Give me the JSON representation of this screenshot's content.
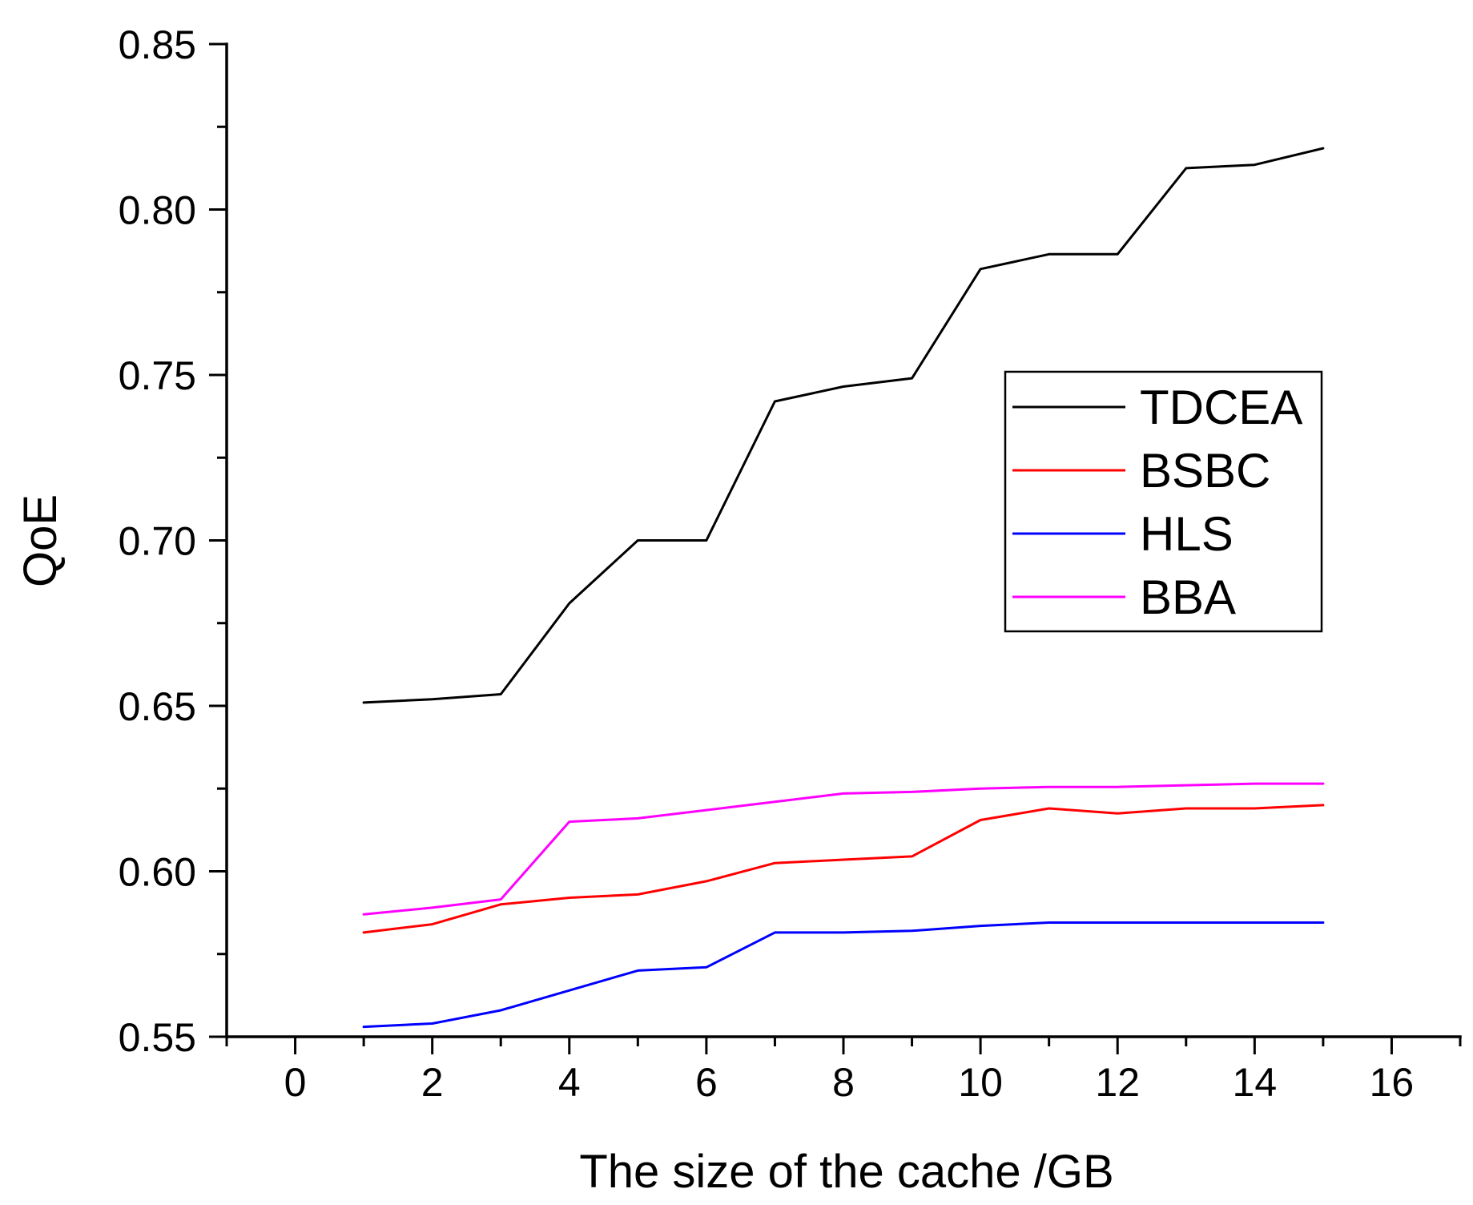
{
  "chart_data": {
    "type": "line",
    "title": "",
    "xlabel": "The size of the cache /GB",
    "ylabel": "QoE",
    "xlim": [
      -1,
      17
    ],
    "ylim": [
      0.55,
      0.85
    ],
    "x_major_ticks": [
      0,
      2,
      4,
      6,
      8,
      10,
      12,
      14,
      16
    ],
    "x_tick_labels": [
      "0",
      "2",
      "4",
      "6",
      "8",
      "10",
      "12",
      "14",
      "16"
    ],
    "x_minor_ticks": [
      -1,
      1,
      3,
      5,
      7,
      9,
      11,
      13,
      15,
      17
    ],
    "y_major_ticks": [
      0.55,
      0.6,
      0.65,
      0.7,
      0.75,
      0.8,
      0.85
    ],
    "y_tick_labels": [
      "0.55",
      "0.60",
      "0.65",
      "0.70",
      "0.75",
      "0.80",
      "0.85"
    ],
    "y_minor_ticks": [
      0.575,
      0.625,
      0.675,
      0.725,
      0.775,
      0.825
    ],
    "grid": false,
    "legend_position": "center-right",
    "x": [
      1,
      2,
      3,
      4,
      5,
      6,
      7,
      8,
      9,
      10,
      11,
      12,
      13,
      14,
      15
    ],
    "series": [
      {
        "name": "TDCEA",
        "color": "#000000",
        "values": [
          0.651,
          0.652,
          0.6535,
          0.681,
          0.7,
          0.7,
          0.742,
          0.7465,
          0.749,
          0.782,
          0.7865,
          0.7865,
          0.8125,
          0.8135,
          0.8185
        ]
      },
      {
        "name": "BSBC",
        "color": "#ff0000",
        "values": [
          0.5815,
          0.584,
          0.59,
          0.592,
          0.593,
          0.597,
          0.6025,
          0.6035,
          0.6045,
          0.6155,
          0.619,
          0.6175,
          0.619,
          0.619,
          0.62
        ]
      },
      {
        "name": "HLS",
        "color": "#0000ff",
        "values": [
          0.553,
          0.554,
          0.558,
          0.564,
          0.57,
          0.571,
          0.5815,
          0.5815,
          0.582,
          0.5835,
          0.5845,
          0.5845,
          0.5845,
          0.5845,
          0.5845
        ]
      },
      {
        "name": "BBA",
        "color": "#ff00ff",
        "values": [
          0.587,
          0.589,
          0.5915,
          0.615,
          0.616,
          0.6185,
          0.621,
          0.6235,
          0.624,
          0.625,
          0.6255,
          0.6255,
          0.626,
          0.6265,
          0.6265
        ]
      }
    ]
  }
}
